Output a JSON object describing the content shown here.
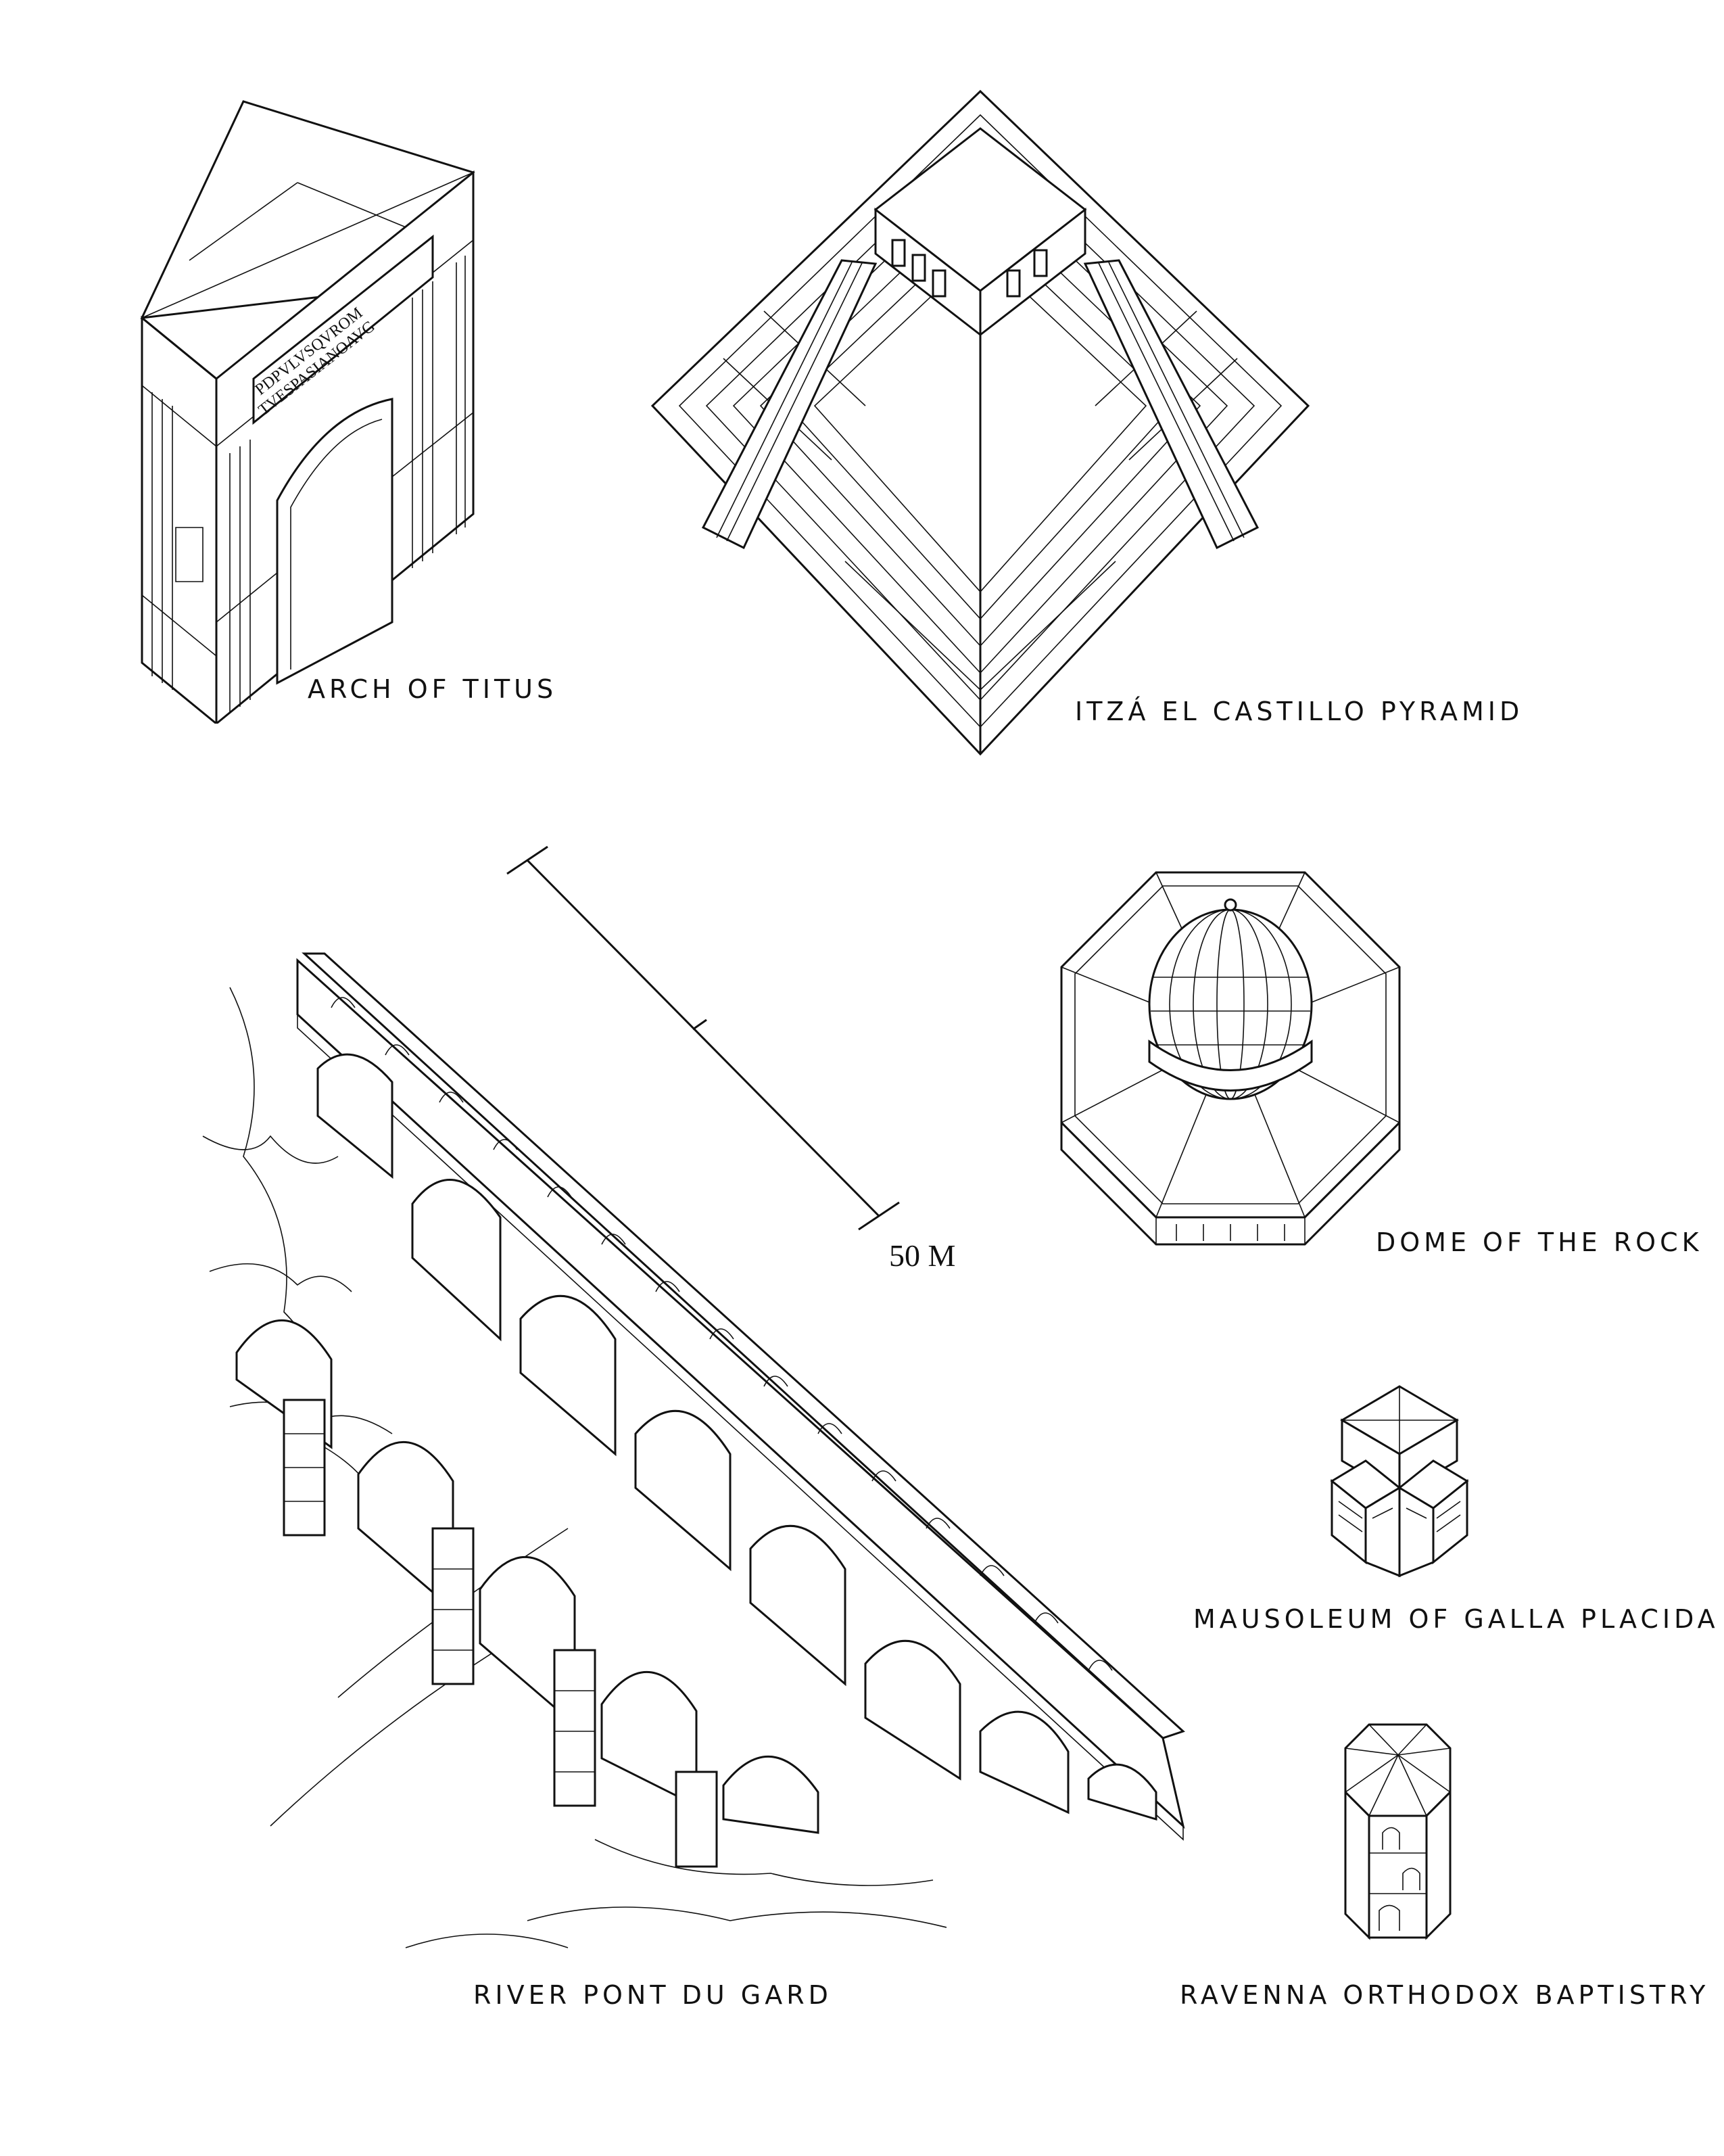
{
  "sheet": {
    "title_labels": {
      "arch_of_titus": "ARCH OF TITUS",
      "pyramid": "ITZÁ EL CASTILLO PYRAMID",
      "dome_of_the_rock": "DOME OF THE ROCK",
      "mausoleum": "MAUSOLEUM OF GALLA PLACIDA",
      "pont_du_gard": "RIVER PONT DU GARD",
      "baptistry": "RAVENNA ORTHODOX BAPTISTRY"
    },
    "arch_inscription": {
      "line1": "PDPVLVSQVROM",
      "line2": "TVESPASIANOAVG"
    },
    "scale_bar": {
      "label": "50 M"
    }
  }
}
